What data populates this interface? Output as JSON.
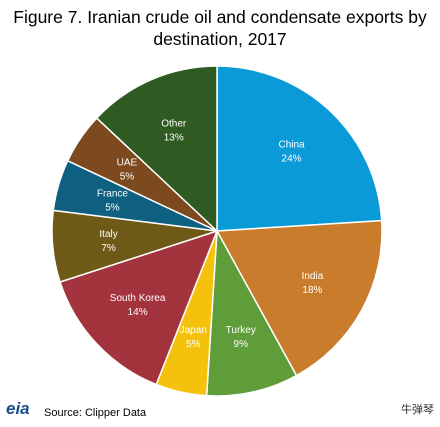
{
  "chart_data": {
    "type": "pie",
    "title": "Figure 7. Iranian crude oil and condensate exports by destination, 2017",
    "categories": [
      "China",
      "India",
      "Turkey",
      "Japan",
      "South Korea",
      "Italy",
      "France",
      "UAE",
      "Other"
    ],
    "values": [
      24,
      18,
      9,
      5,
      14,
      7,
      5,
      5,
      13
    ],
    "value_labels": [
      "24%",
      "18%",
      "9%",
      "5%",
      "14%",
      "7%",
      "5%",
      "5%",
      "13%"
    ],
    "colors": [
      "#0b9ad8",
      "#c97c2c",
      "#5f9c3a",
      "#f4c20d",
      "#a3333d",
      "#6e5a16",
      "#0e5f80",
      "#7c4a1e",
      "#2f5b22"
    ],
    "source": "Source: Clipper Data",
    "logo": "eia",
    "watermark": "牛弹琴"
  }
}
